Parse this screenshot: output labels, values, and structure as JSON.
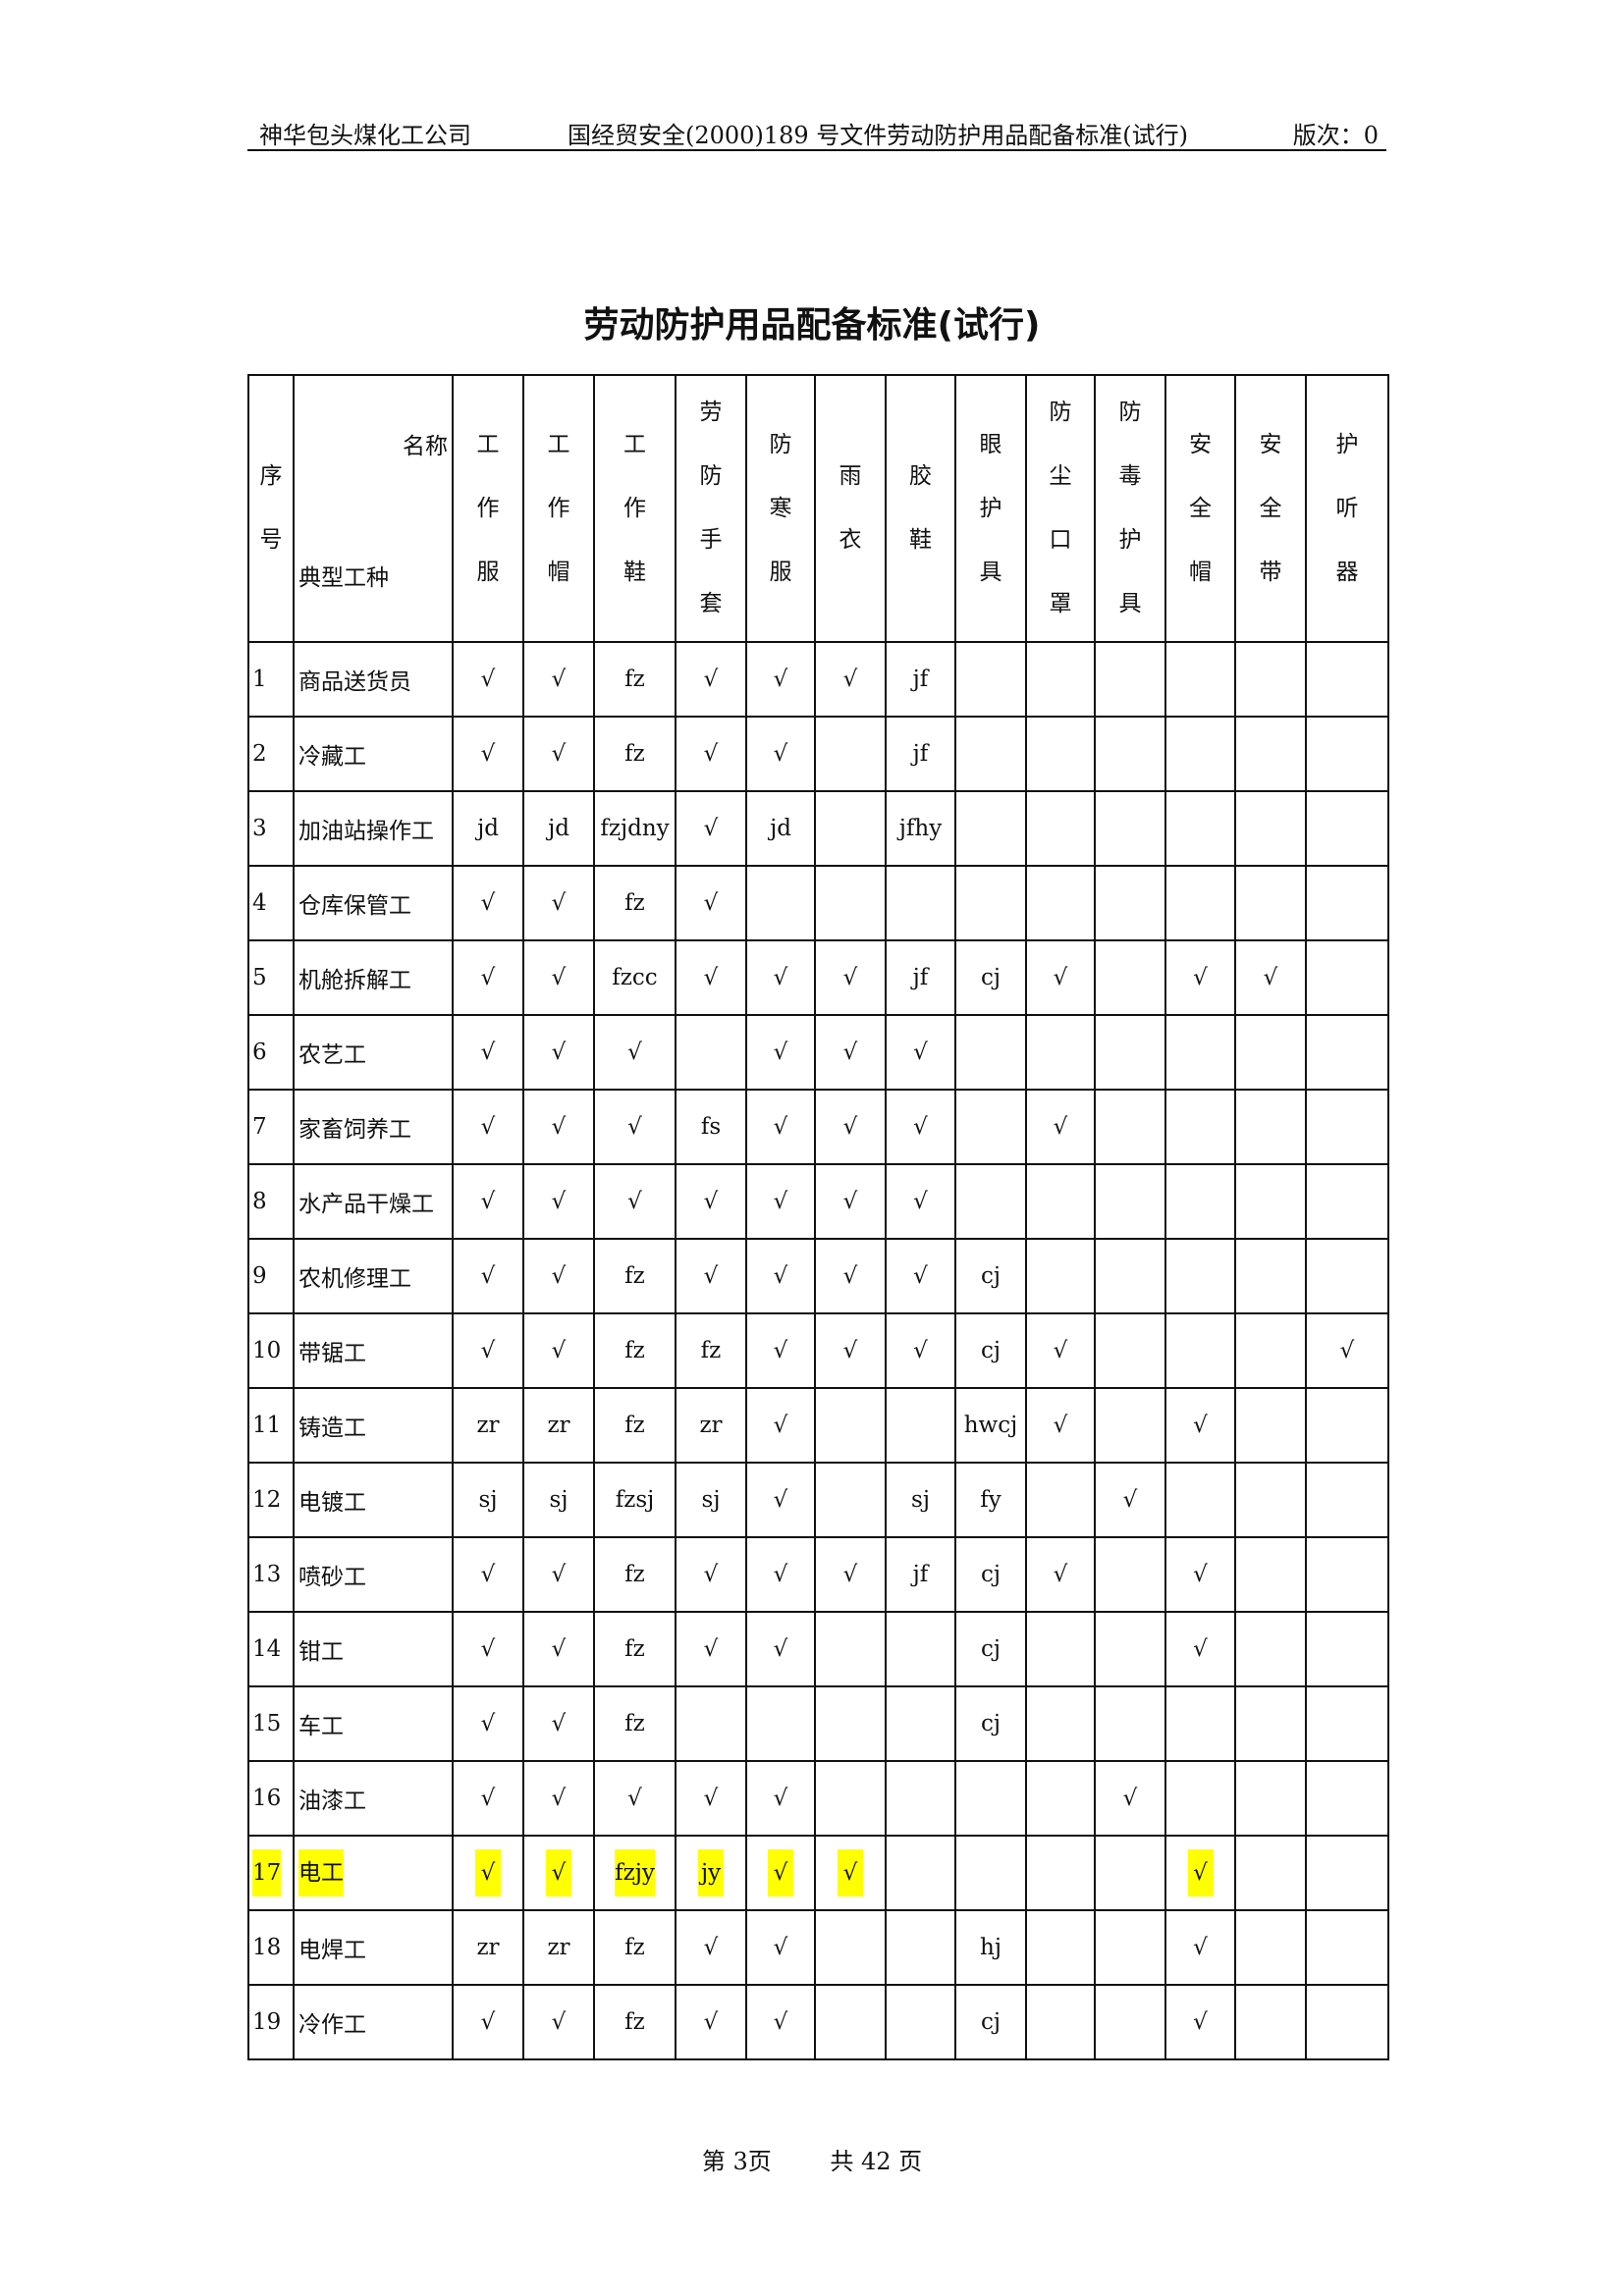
{
  "header": {
    "company": "神华包头煤化工公司",
    "doc": "国经贸安全(2000)189 号文件劳动防护用品配备标准(试行)",
    "version": "版次：0"
  },
  "title": "劳动防护用品配备标准(试行)",
  "table": {
    "seq_header": "序号",
    "corner_top": "名称",
    "corner_bottom": "典型工种",
    "columns": [
      "工作服",
      "工作帽",
      "工作鞋",
      "劳防手套",
      "防寒服",
      "雨衣",
      "胶鞋",
      "眼护具",
      "防尘口罩",
      "防毒护具",
      "安全帽",
      "安全带",
      "护听器"
    ],
    "highlight_color": "#ffff00",
    "rows": [
      {
        "no": "1",
        "name": "商品送货员",
        "cells": [
          "√",
          "√",
          "fz",
          "√",
          "√",
          "√",
          "jf",
          "",
          "",
          "",
          "",
          "",
          ""
        ]
      },
      {
        "no": "2",
        "name": "冷藏工",
        "cells": [
          "√",
          "√",
          "fz",
          "√",
          "√",
          "",
          "jf",
          "",
          "",
          "",
          "",
          "",
          ""
        ]
      },
      {
        "no": "3",
        "name": "加油站操作工",
        "cells": [
          "jd",
          "jd",
          "fzjdny",
          "√",
          "jd",
          "",
          "jfhy",
          "",
          "",
          "",
          "",
          "",
          ""
        ]
      },
      {
        "no": "4",
        "name": "仓库保管工",
        "cells": [
          "√",
          "√",
          "fz",
          "√",
          "",
          "",
          "",
          "",
          "",
          "",
          "",
          "",
          ""
        ]
      },
      {
        "no": "5",
        "name": "机舱拆解工",
        "cells": [
          "√",
          "√",
          "fzcc",
          "√",
          "√",
          "√",
          "jf",
          "cj",
          "√",
          "",
          "√",
          "√",
          ""
        ]
      },
      {
        "no": "6",
        "name": "农艺工",
        "cells": [
          "√",
          "√",
          "√",
          "",
          "√",
          "√",
          "√",
          "",
          "",
          "",
          "",
          "",
          ""
        ]
      },
      {
        "no": "7",
        "name": "家畜饲养工",
        "cells": [
          "√",
          "√",
          "√",
          "fs",
          "√",
          "√",
          "√",
          "",
          "√",
          "",
          "",
          "",
          ""
        ]
      },
      {
        "no": "8",
        "name": "水产品干燥工",
        "cells": [
          "√",
          "√",
          "√",
          "√",
          "√",
          "√",
          "√",
          "",
          "",
          "",
          "",
          "",
          ""
        ]
      },
      {
        "no": "9",
        "name": "农机修理工",
        "cells": [
          "√",
          "√",
          "fz",
          "√",
          "√",
          "√",
          "√",
          "cj",
          "",
          "",
          "",
          "",
          ""
        ]
      },
      {
        "no": "10",
        "name": "带锯工",
        "cells": [
          "√",
          "√",
          "fz",
          "fz",
          "√",
          "√",
          "√",
          "cj",
          "√",
          "",
          "",
          "",
          "√"
        ]
      },
      {
        "no": "11",
        "name": "铸造工",
        "cells": [
          "zr",
          "zr",
          "fz",
          "zr",
          "√",
          "",
          "",
          "hwcj",
          "√",
          "",
          "√",
          "",
          ""
        ]
      },
      {
        "no": "12",
        "name": "电镀工",
        "cells": [
          "sj",
          "sj",
          "fzsj",
          "sj",
          "√",
          "",
          "sj",
          "fy",
          "",
          "√",
          "",
          "",
          ""
        ]
      },
      {
        "no": "13",
        "name": "喷砂工",
        "cells": [
          "√",
          "√",
          "fz",
          "√",
          "√",
          "√",
          "jf",
          "cj",
          "√",
          "",
          "√",
          "",
          ""
        ]
      },
      {
        "no": "14",
        "name": "钳工",
        "cells": [
          "√",
          "√",
          "fz",
          "√",
          "√",
          "",
          "",
          "cj",
          "",
          "",
          "√",
          "",
          ""
        ]
      },
      {
        "no": "15",
        "name": "车工",
        "cells": [
          "√",
          "√",
          "fz",
          "",
          "",
          "",
          "",
          "cj",
          "",
          "",
          "",
          "",
          ""
        ]
      },
      {
        "no": "16",
        "name": "油漆工",
        "cells": [
          "√",
          "√",
          "√",
          "√",
          "√",
          "",
          "",
          "",
          "",
          "√",
          "",
          "",
          ""
        ]
      },
      {
        "no": "17",
        "name": "电工",
        "highlighted": true,
        "cells": [
          "√",
          "√",
          "fzjy",
          "jy",
          "√",
          "√",
          "",
          "",
          "",
          "",
          "√",
          "",
          ""
        ]
      },
      {
        "no": "18",
        "name": "电焊工",
        "cells": [
          "zr",
          "zr",
          "fz",
          "√",
          "√",
          "",
          "",
          "hj",
          "",
          "",
          "√",
          "",
          ""
        ]
      },
      {
        "no": "19",
        "name": "冷作工",
        "cells": [
          "√",
          "√",
          "fz",
          "√",
          "√",
          "",
          "",
          "cj",
          "",
          "",
          "√",
          "",
          ""
        ]
      }
    ]
  },
  "footer": {
    "page": "第 3页",
    "total": "共 42 页"
  }
}
